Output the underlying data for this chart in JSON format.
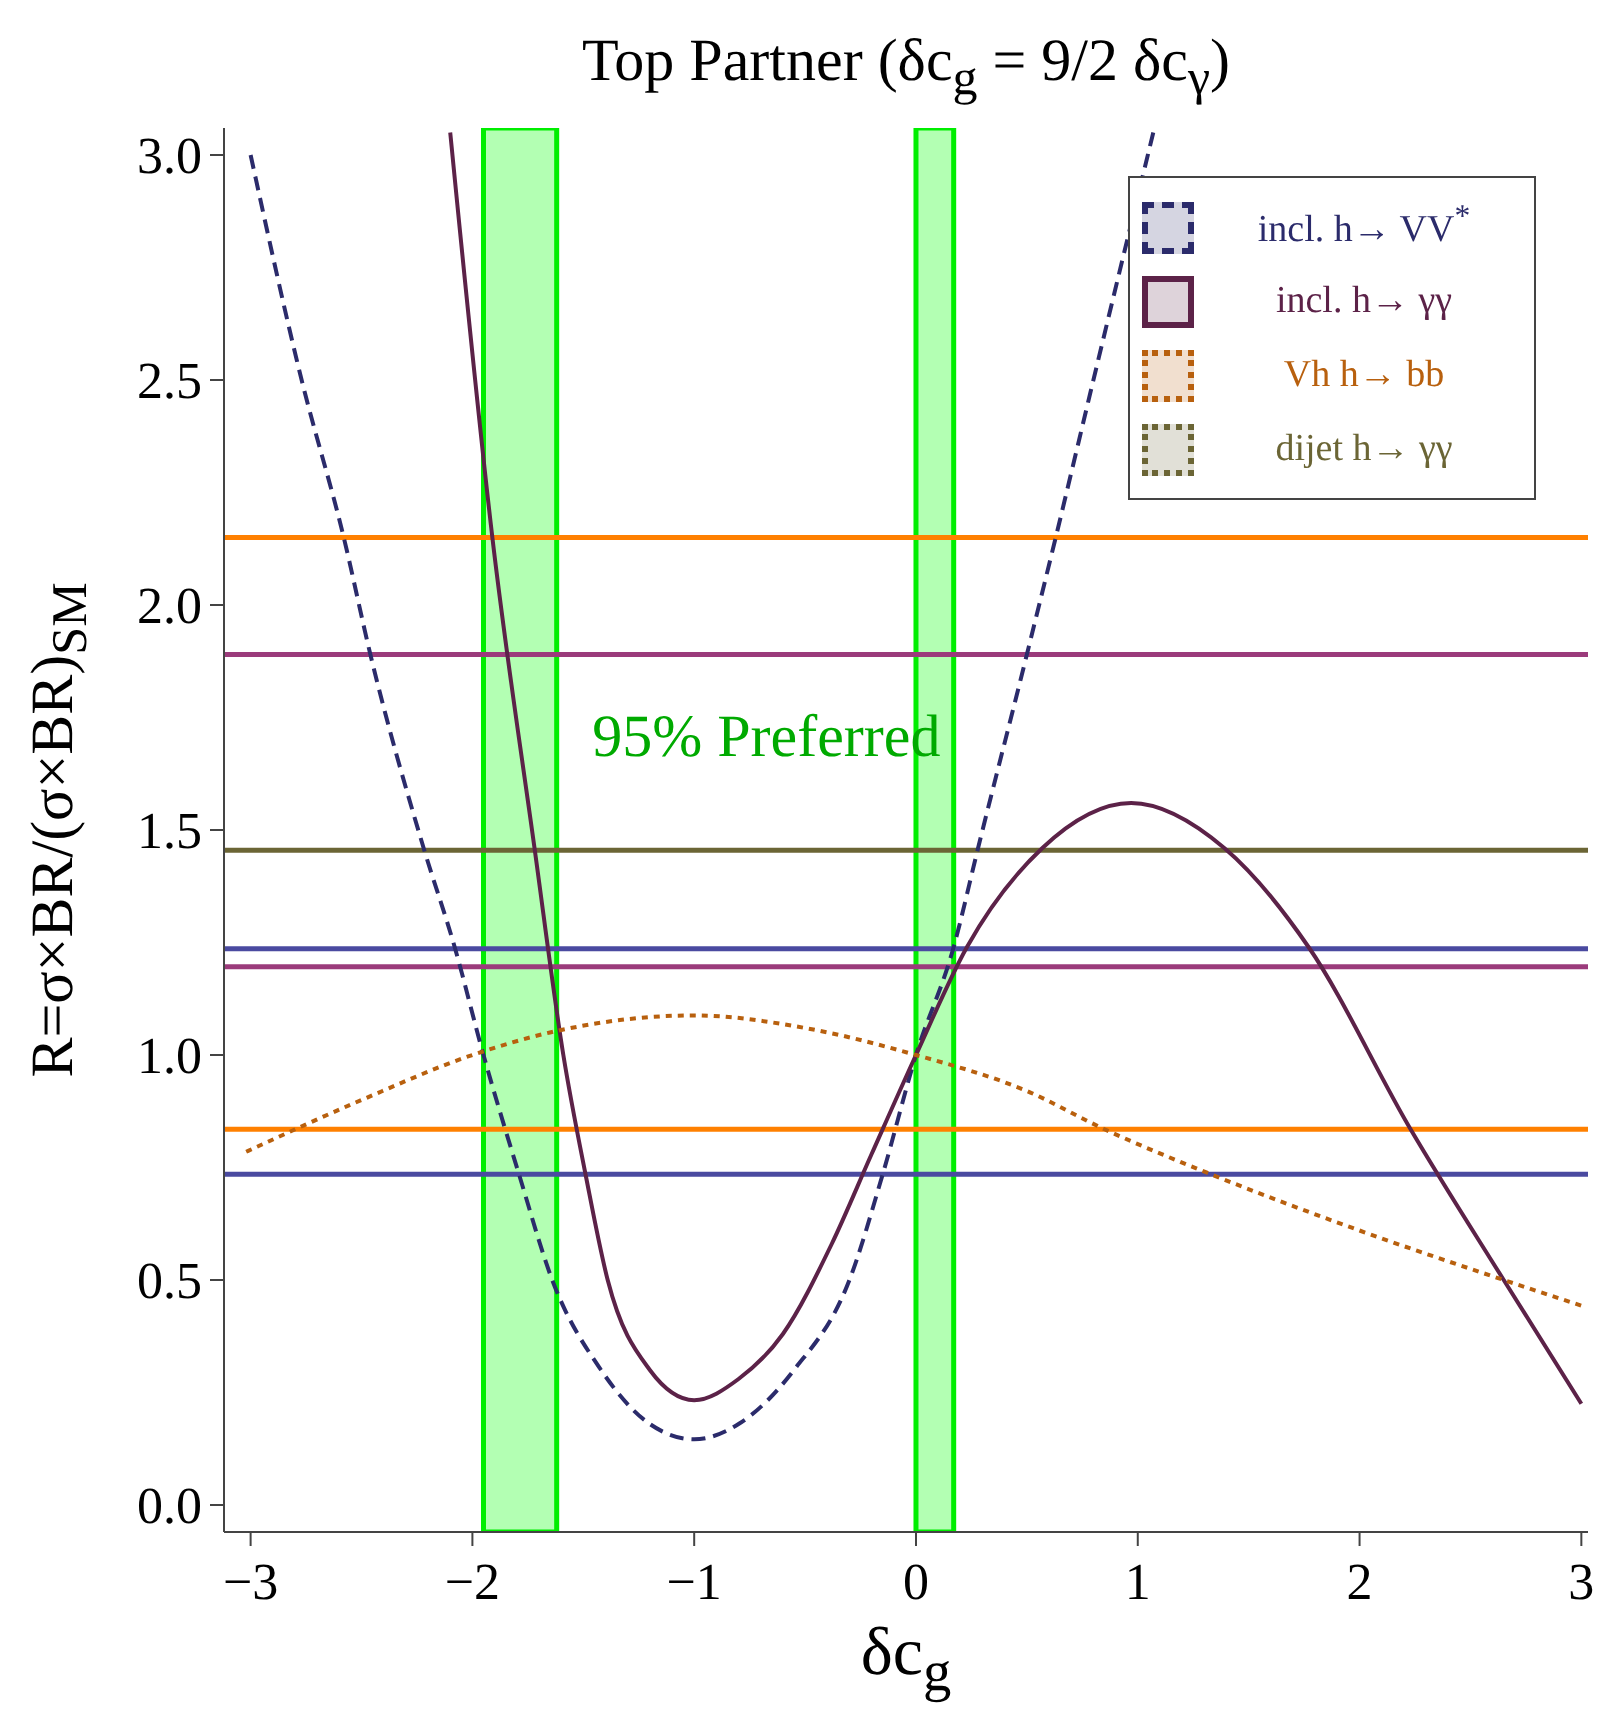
{
  "chart_data": {
    "type": "line",
    "title": "Top Partner (δc$_{g}$ = 9/2 δc$_{γ}$)",
    "xlabel": "δc$_{g}$",
    "ylabel": "R=σ×BR/(σ×BR)$_{SM}$",
    "xlim": [
      -3.12,
      3.03
    ],
    "ylim": [
      -0.06,
      3.06
    ],
    "xticks": [
      -3,
      -2,
      -1,
      0,
      1,
      2,
      3
    ],
    "yticks": [
      {
        "value": 0,
        "label": "0.0"
      },
      {
        "value": 0.5,
        "label": "0.5"
      },
      {
        "value": 1,
        "label": "1.0"
      },
      {
        "value": 1.5,
        "label": "1.5"
      },
      {
        "value": 2,
        "label": "2.0"
      },
      {
        "value": 2.5,
        "label": "2.5"
      },
      {
        "value": 3,
        "label": "3.0"
      }
    ],
    "legend": "top right",
    "grid": false,
    "marker": "none",
    "series": [
      {
        "name": "incl. h→ VV$^{*}$",
        "color": "#2b2b6b",
        "line_style": "dashed",
        "x": [
          -3.0,
          -2.77,
          -2.58,
          -2.46,
          -2.22,
          -2.08,
          -1.95,
          -1.79,
          -1.64,
          -1.42,
          -1.2,
          -1.0,
          -0.8,
          -0.55,
          -0.3,
          -0.15,
          0,
          0.17,
          0.28,
          0.5,
          0.63,
          0.8,
          1.07
        ],
        "values": [
          3.0,
          2.5,
          2.15,
          1.89,
          1.46,
          1.24,
          1.0,
          0.735,
          0.5,
          0.3,
          0.18,
          0.146,
          0.18,
          0.3,
          0.5,
          0.735,
          1.0,
          1.24,
          1.46,
          1.89,
          2.15,
          2.5,
          3.05
        ]
      },
      {
        "name": "incl.  h→ γγ",
        "color": "#5c2248",
        "line_style": "solid",
        "x": [
          -2.1,
          -1.91,
          -1.72,
          -1.59,
          -1.49,
          -1.39,
          -1.2,
          -1.0,
          -0.8,
          -0.6,
          -0.38,
          -0.2,
          0,
          0.23,
          0.57,
          0.97,
          1.39,
          1.77,
          2.23,
          2.65,
          3.0
        ],
        "values": [
          3.05,
          2.15,
          1.46,
          1.0,
          0.735,
          0.5,
          0.3,
          0.233,
          0.28,
          0.38,
          0.58,
          0.78,
          1.0,
          1.24,
          1.46,
          1.56,
          1.46,
          1.24,
          0.835,
          0.5,
          0.225
        ]
      },
      {
        "name": "Vh  h→ bb",
        "color": "#b8600e",
        "line_style": "dotted",
        "x": [
          -3.02,
          -2.5,
          -2.0,
          -1.65,
          -1.0,
          -0.5,
          0,
          0.5,
          0.85,
          1.33,
          2.0,
          2.65,
          3.0
        ],
        "values": [
          0.785,
          0.9,
          1.0,
          1.05,
          1.088,
          1.06,
          1.0,
          0.92,
          0.835,
          0.735,
          0.61,
          0.5,
          0.443
        ]
      },
      {
        "name": "dijet h→ γγ",
        "color": "#6b6535",
        "line_style": "dotted"
      }
    ],
    "ref_lines": [
      {
        "axis": "y",
        "value": 2.15,
        "color": "#ff8000"
      },
      {
        "axis": "y",
        "value": 1.89,
        "color": "#9b3b7b"
      },
      {
        "axis": "y",
        "value": 1.455,
        "color": "#6b6535"
      },
      {
        "axis": "y",
        "value": 1.236,
        "color": "#4a4aa0"
      },
      {
        "axis": "y",
        "value": 1.196,
        "color": "#9b3b7b"
      },
      {
        "axis": "y",
        "value": 0.835,
        "color": "#ff8000"
      },
      {
        "axis": "y",
        "value": 0.735,
        "color": "#4a4aa0"
      }
    ],
    "bands": [
      {
        "axis": "x",
        "from": -1.95,
        "to": -1.62,
        "color": "#b3ffb3"
      },
      {
        "axis": "x",
        "from": 0,
        "to": 0.17,
        "color": "#b3ffb3"
      }
    ],
    "annotations": [
      "95% Preferred"
    ]
  }
}
